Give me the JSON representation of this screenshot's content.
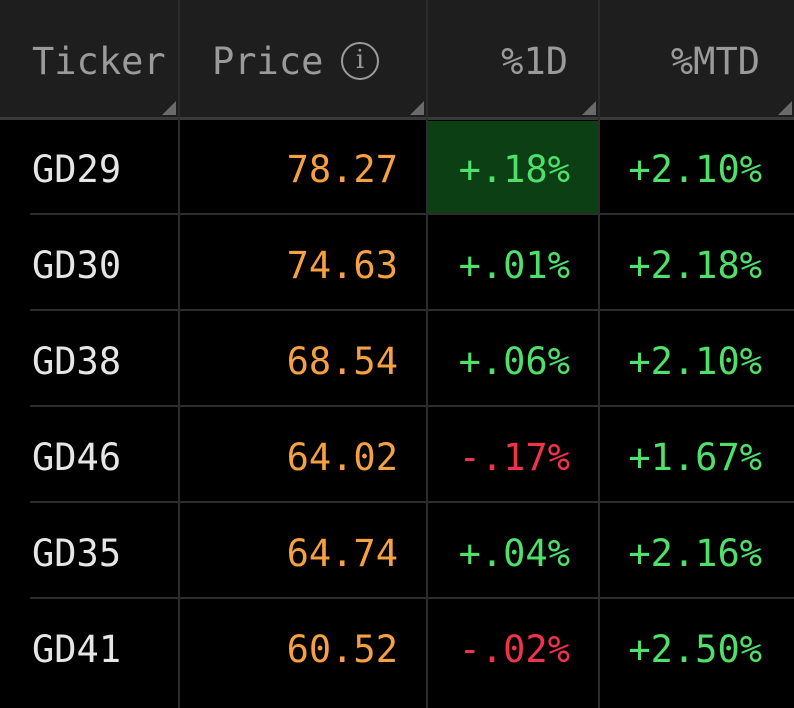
{
  "columns": {
    "ticker": "Ticker",
    "price": "Price",
    "pct_1d": "%1D",
    "pct_mtd": "%MTD"
  },
  "info_icon_glyph": "i",
  "colors": {
    "price": "#f5a042",
    "positive": "#4ee06a",
    "negative": "#f0324a",
    "highlight_bg": "#0c4014",
    "header_bg": "#1e1e1e"
  },
  "rows": [
    {
      "ticker": "GD29",
      "price": "78.27",
      "pct_1d": "+.18%",
      "pct_mtd": "+2.10%",
      "d1_sign": "positive",
      "mtd_sign": "positive",
      "highlighted": true
    },
    {
      "ticker": "GD30",
      "price": "74.63",
      "pct_1d": "+.01%",
      "pct_mtd": "+2.18%",
      "d1_sign": "positive",
      "mtd_sign": "positive",
      "highlighted": false
    },
    {
      "ticker": "GD38",
      "price": "68.54",
      "pct_1d": "+.06%",
      "pct_mtd": "+2.10%",
      "d1_sign": "positive",
      "mtd_sign": "positive",
      "highlighted": false
    },
    {
      "ticker": "GD46",
      "price": "64.02",
      "pct_1d": "-.17%",
      "pct_mtd": "+1.67%",
      "d1_sign": "negative",
      "mtd_sign": "positive",
      "highlighted": false
    },
    {
      "ticker": "GD35",
      "price": "64.74",
      "pct_1d": "+.04%",
      "pct_mtd": "+2.16%",
      "d1_sign": "positive",
      "mtd_sign": "positive",
      "highlighted": false
    },
    {
      "ticker": "GD41",
      "price": "60.52",
      "pct_1d": "-.02%",
      "pct_mtd": "+2.50%",
      "d1_sign": "negative",
      "mtd_sign": "positive",
      "highlighted": false
    }
  ]
}
